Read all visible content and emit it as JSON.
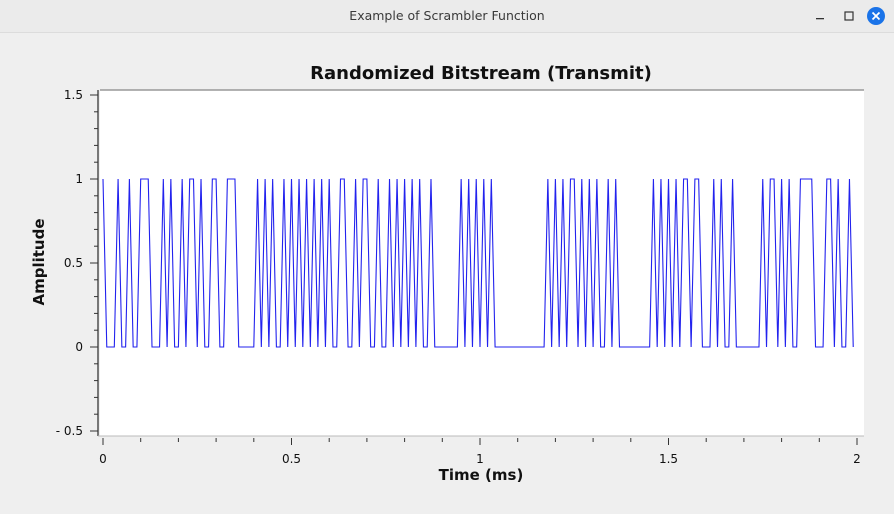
{
  "window": {
    "title": "Example of Scrambler Function",
    "icons": {
      "minimize": "minimize-icon",
      "maximize": "maximize-icon",
      "close": "close-icon"
    }
  },
  "colors": {
    "series": "#2222ee",
    "plot_bg": "#ffffff",
    "window_bg": "#efefef",
    "close_button": "#1a73e8"
  },
  "chart_data": {
    "type": "line",
    "title": "Randomized Bitstream (Transmit)",
    "xlabel": "Time (ms)",
    "ylabel": "Amplitude",
    "xlim": [
      0,
      2
    ],
    "ylim": [
      -0.5,
      1.5
    ],
    "xticks": [
      0,
      0.5,
      1,
      1.5,
      2
    ],
    "xtick_labels": [
      "0",
      "0.5",
      "1",
      "1.5",
      "2"
    ],
    "yticks": [
      -0.5,
      0,
      0.5,
      1,
      1.5
    ],
    "ytick_labels": [
      "- 0.5",
      "0",
      "0.5",
      "1",
      "1.5"
    ],
    "grid": false,
    "legend": "none",
    "sample_period_ms": 0.01,
    "series": [
      {
        "values": [
          1,
          0,
          0,
          0,
          1,
          0,
          0,
          1,
          0,
          0,
          1,
          1,
          1,
          0,
          0,
          0,
          1,
          0,
          1,
          0,
          0,
          1,
          0,
          1,
          1,
          0,
          1,
          0,
          0,
          1,
          1,
          0,
          0,
          1,
          1,
          1,
          0,
          0,
          0,
          0,
          0,
          1,
          0,
          1,
          0,
          1,
          0,
          0,
          1,
          0,
          1,
          0,
          1,
          0,
          1,
          0,
          1,
          0,
          1,
          0,
          1,
          0,
          0,
          1,
          1,
          0,
          0,
          1,
          0,
          1,
          1,
          0,
          0,
          1,
          0,
          0,
          1,
          0,
          1,
          0,
          1,
          0,
          1,
          0,
          1,
          0,
          0,
          1,
          0,
          0,
          0,
          0,
          0,
          0,
          0,
          1,
          0,
          1,
          0,
          1,
          0,
          1,
          0,
          1,
          0,
          0,
          0,
          0,
          0,
          0,
          0,
          0,
          0,
          0,
          0,
          0,
          0,
          0,
          1,
          0,
          1,
          0,
          1,
          0,
          1,
          1,
          0,
          1,
          0,
          1,
          0,
          1,
          0,
          0,
          1,
          0,
          1,
          0,
          0,
          0,
          0,
          0,
          0,
          0,
          0,
          0,
          1,
          0,
          1,
          0,
          1,
          0,
          1,
          0,
          1,
          1,
          0,
          1,
          1,
          0,
          0,
          0,
          1,
          0,
          1,
          0,
          0,
          1,
          0,
          0,
          0,
          0,
          0,
          0,
          0,
          1,
          0,
          1,
          1,
          0,
          1,
          0,
          1,
          0,
          0,
          1,
          1,
          1,
          1,
          0,
          0,
          0,
          1,
          1,
          0,
          1,
          0,
          0,
          1,
          0
        ]
      }
    ]
  }
}
